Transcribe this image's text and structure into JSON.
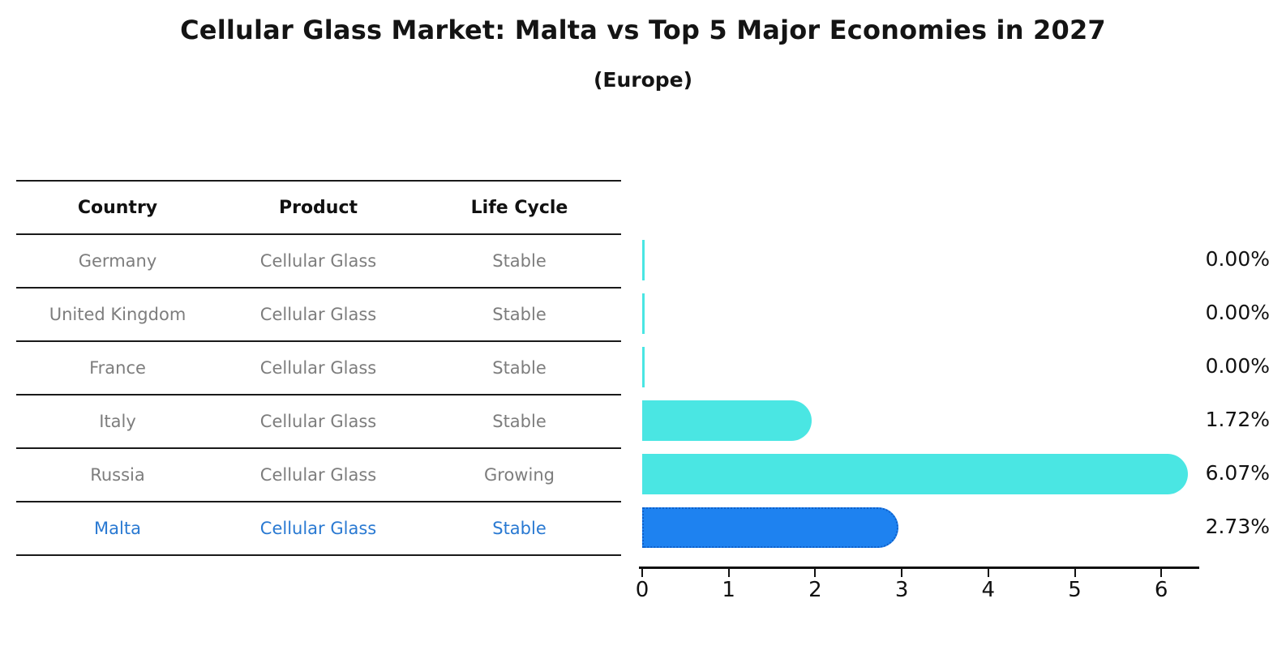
{
  "title": "Cellular Glass Market: Malta vs Top 5 Major Economies in 2027",
  "subtitle": "(Europe)",
  "table": {
    "headers": [
      "Country",
      "Product",
      "Life Cycle"
    ],
    "rows": [
      {
        "country": "Germany",
        "product": "Cellular Glass",
        "life_cycle": "Stable",
        "highlight": false
      },
      {
        "country": "United Kingdom",
        "product": "Cellular Glass",
        "life_cycle": "Stable",
        "highlight": false
      },
      {
        "country": "France",
        "product": "Cellular Glass",
        "life_cycle": "Stable",
        "highlight": false
      },
      {
        "country": "Italy",
        "product": "Cellular Glass",
        "life_cycle": "Stable",
        "highlight": false
      },
      {
        "country": "Russia",
        "product": "Cellular Glass",
        "life_cycle": "Growing",
        "highlight": false
      },
      {
        "country": "Malta",
        "product": "Cellular Glass",
        "life_cycle": "Stable",
        "highlight": true
      }
    ]
  },
  "chart_data": {
    "type": "bar",
    "orientation": "horizontal",
    "title": "Cellular Glass Market: Malta vs Top 5 Major Economies in 2027",
    "subtitle": "(Europe)",
    "categories": [
      "Germany",
      "United Kingdom",
      "France",
      "Italy",
      "Russia",
      "Malta"
    ],
    "values": [
      0.0,
      0.0,
      0.0,
      1.72,
      6.07,
      2.73
    ],
    "value_labels": [
      "0.00%",
      "0.00%",
      "0.00%",
      "1.72%",
      "6.07%",
      "2.73%"
    ],
    "highlight_index": 5,
    "xlim": [
      0,
      6.4
    ],
    "xticks": [
      0,
      1,
      2,
      3,
      4,
      5,
      6
    ],
    "grid": false,
    "legend": "none",
    "ylabel": "",
    "xlabel": ""
  },
  "colors": {
    "bar_default": "#4ae6e3",
    "bar_highlight": "#1e82f0",
    "bar_highlight_border": "#0f5fc8",
    "highlight_text": "#2979d2",
    "row_text": "#7d7d7d",
    "header_text": "#111111",
    "background": "#ffffff"
  }
}
